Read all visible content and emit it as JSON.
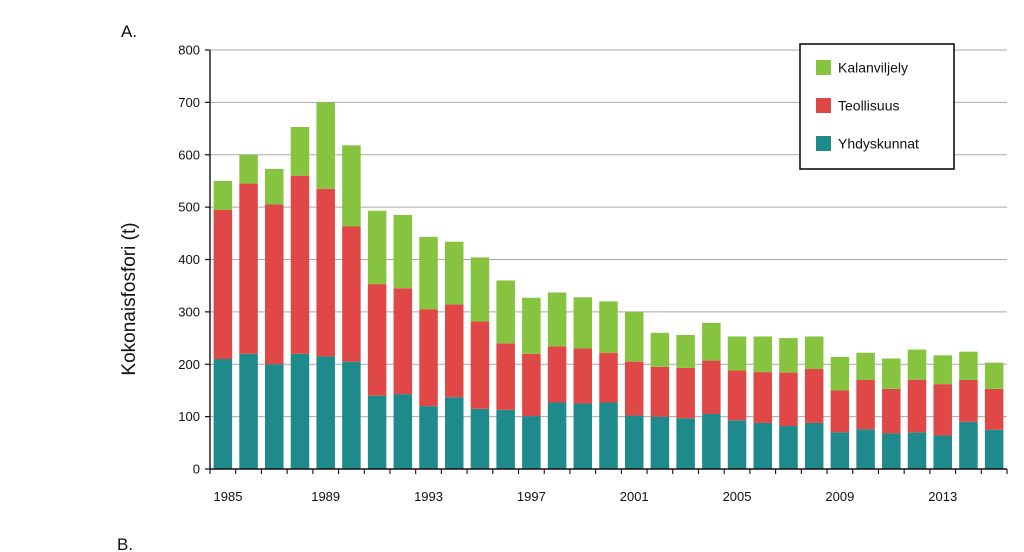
{
  "panel_labels": [
    "A.",
    "B."
  ],
  "chart_data": {
    "type": "bar",
    "stacked": true,
    "title": "",
    "xlabel": "",
    "ylabel": "Kokonaisfosfori (t)",
    "ylim": [
      0,
      800
    ],
    "yticks": [
      0,
      100,
      200,
      300,
      400,
      500,
      600,
      700,
      800
    ],
    "grid": true,
    "legend_position": "top-right",
    "categories": [
      1985,
      1986,
      1987,
      1988,
      1989,
      1990,
      1991,
      1992,
      1993,
      1994,
      1995,
      1996,
      1997,
      1998,
      1999,
      2000,
      2001,
      2002,
      2003,
      2004,
      2005,
      2006,
      2007,
      2008,
      2009,
      2010,
      2011,
      2012,
      2013,
      2014,
      2015
    ],
    "xtick_labels": [
      "1985",
      "1989",
      "1993",
      "1997",
      "2001",
      "2005",
      "2009",
      "2013"
    ],
    "series": [
      {
        "name": "Yhdyskunnat",
        "color": "#1f8a8c",
        "values": [
          210,
          220,
          200,
          220,
          215,
          205,
          140,
          143,
          120,
          137,
          115,
          113,
          101,
          127,
          125,
          127,
          102,
          100,
          97,
          105,
          93,
          88,
          82,
          88,
          70,
          76,
          68,
          70,
          64,
          90,
          75
        ]
      },
      {
        "name": "Teollisuus",
        "color": "#e04848",
        "values": [
          285,
          325,
          305,
          340,
          320,
          258,
          213,
          202,
          185,
          177,
          167,
          127,
          119,
          107,
          105,
          95,
          103,
          95,
          96,
          102,
          95,
          97,
          102,
          103,
          80,
          94,
          85,
          100,
          98,
          80,
          78
        ]
      },
      {
        "name": "Kalanviljely",
        "color": "#86c440",
        "values": [
          55,
          55,
          68,
          93,
          165,
          155,
          140,
          140,
          138,
          120,
          122,
          120,
          107,
          103,
          98,
          98,
          95,
          65,
          63,
          72,
          65,
          68,
          66,
          62,
          64,
          52,
          58,
          58,
          55,
          54,
          50
        ]
      }
    ]
  }
}
